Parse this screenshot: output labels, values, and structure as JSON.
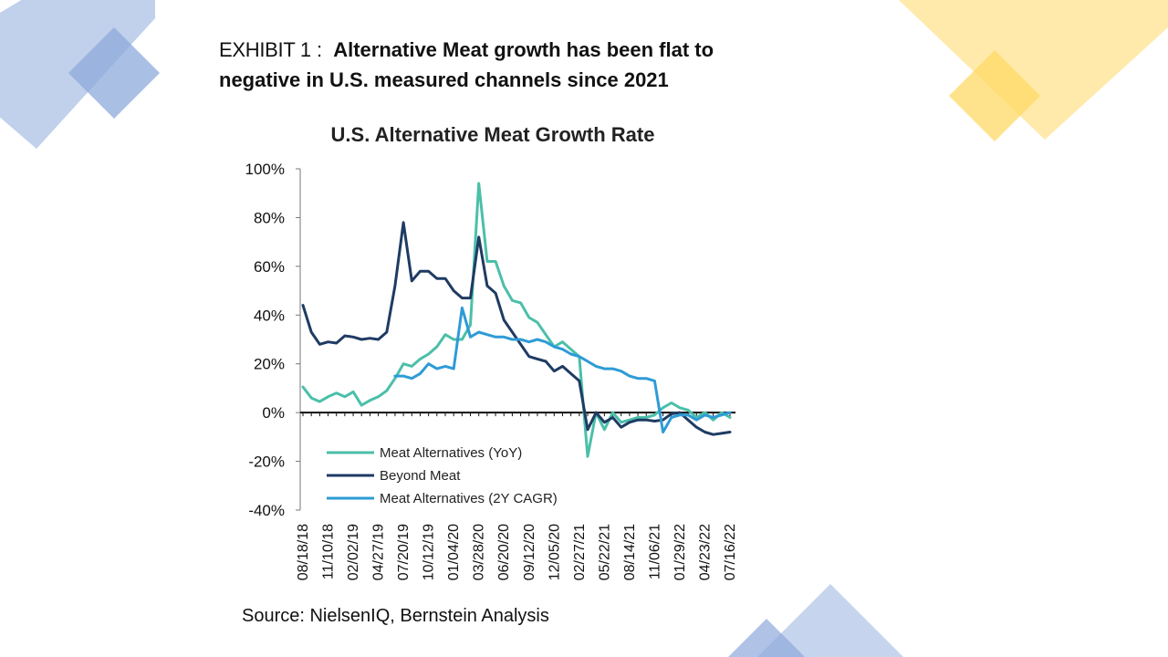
{
  "colors": {
    "deco_blue": "#8ea9db",
    "deco_yellow": "#ffd966",
    "yoy": "#4bbfa9",
    "beyond": "#1f3b63",
    "cagr": "#2e9bd6"
  },
  "exhibit": {
    "label": "EXHIBIT 1",
    "colon": ":",
    "headline": "Alternative Meat growth has been flat to negative in U.S. measured channels since 2021"
  },
  "source": "Source: NielsenIQ, Bernstein Analysis",
  "chart_data": {
    "type": "line",
    "title": "U.S. Alternative Meat Growth Rate",
    "xlabel": "",
    "ylabel": "",
    "ylim": [
      -40,
      100
    ],
    "y_ticks": [
      "100%",
      "80%",
      "60%",
      "40%",
      "20%",
      "0%",
      "-20%",
      "-40%"
    ],
    "y_tick_values": [
      100,
      80,
      60,
      40,
      20,
      0,
      -20,
      -40
    ],
    "x_tick_labels": [
      "08/18/18",
      "11/10/18",
      "02/02/19",
      "04/27/19",
      "07/20/19",
      "10/12/19",
      "01/04/20",
      "03/28/20",
      "06/20/20",
      "09/12/20",
      "12/05/20",
      "02/27/21",
      "05/22/21",
      "08/14/21",
      "11/06/21",
      "01/29/22",
      "04/23/22",
      "07/16/22"
    ],
    "n_periods": 52,
    "series": [
      {
        "name": "Meat Alternatives (YoY)",
        "color_key": "yoy",
        "start_index": 0,
        "values": [
          10.5,
          6,
          4.5,
          6.5,
          8,
          6.5,
          8.5,
          3,
          5,
          6.5,
          9,
          14,
          20,
          19,
          22,
          24,
          27,
          32,
          30,
          30,
          36,
          94,
          62,
          62,
          52,
          46,
          45,
          39,
          37,
          32,
          27,
          29,
          26,
          23,
          -18,
          0,
          -7,
          0,
          -4,
          -3,
          -2,
          -2,
          -1,
          2,
          4,
          2,
          1,
          -2,
          0,
          -3,
          0,
          -2
        ]
      },
      {
        "name": "Beyond Meat",
        "color_key": "beyond",
        "start_index": 0,
        "values": [
          44,
          33,
          28,
          29,
          28.5,
          31.5,
          31,
          30,
          30.5,
          30,
          33,
          52,
          78,
          54,
          58,
          58,
          55,
          55,
          50,
          47,
          47,
          72,
          52,
          49,
          38,
          33,
          28,
          23,
          22,
          21,
          17,
          19,
          16,
          13,
          -7,
          0,
          -4,
          -2,
          -6,
          -4,
          -3,
          -3,
          -3.5,
          -3,
          -0.5,
          0,
          -3,
          -6,
          -8,
          -9,
          -8.5,
          -8
        ]
      },
      {
        "name": "Meat Alternatives (2Y CAGR)",
        "color_key": "cagr",
        "start_index": 11,
        "values": [
          15,
          15,
          14,
          16,
          20,
          18,
          19,
          18,
          43,
          31,
          33,
          32,
          31,
          31,
          30,
          30,
          29,
          30,
          29,
          27,
          26,
          24,
          23,
          21,
          19,
          18,
          18,
          17,
          15,
          14,
          14,
          13,
          -8,
          -2,
          -1,
          -1,
          -3,
          -1,
          -2,
          -1,
          0
        ]
      }
    ],
    "legend_placement": "lower-left"
  }
}
